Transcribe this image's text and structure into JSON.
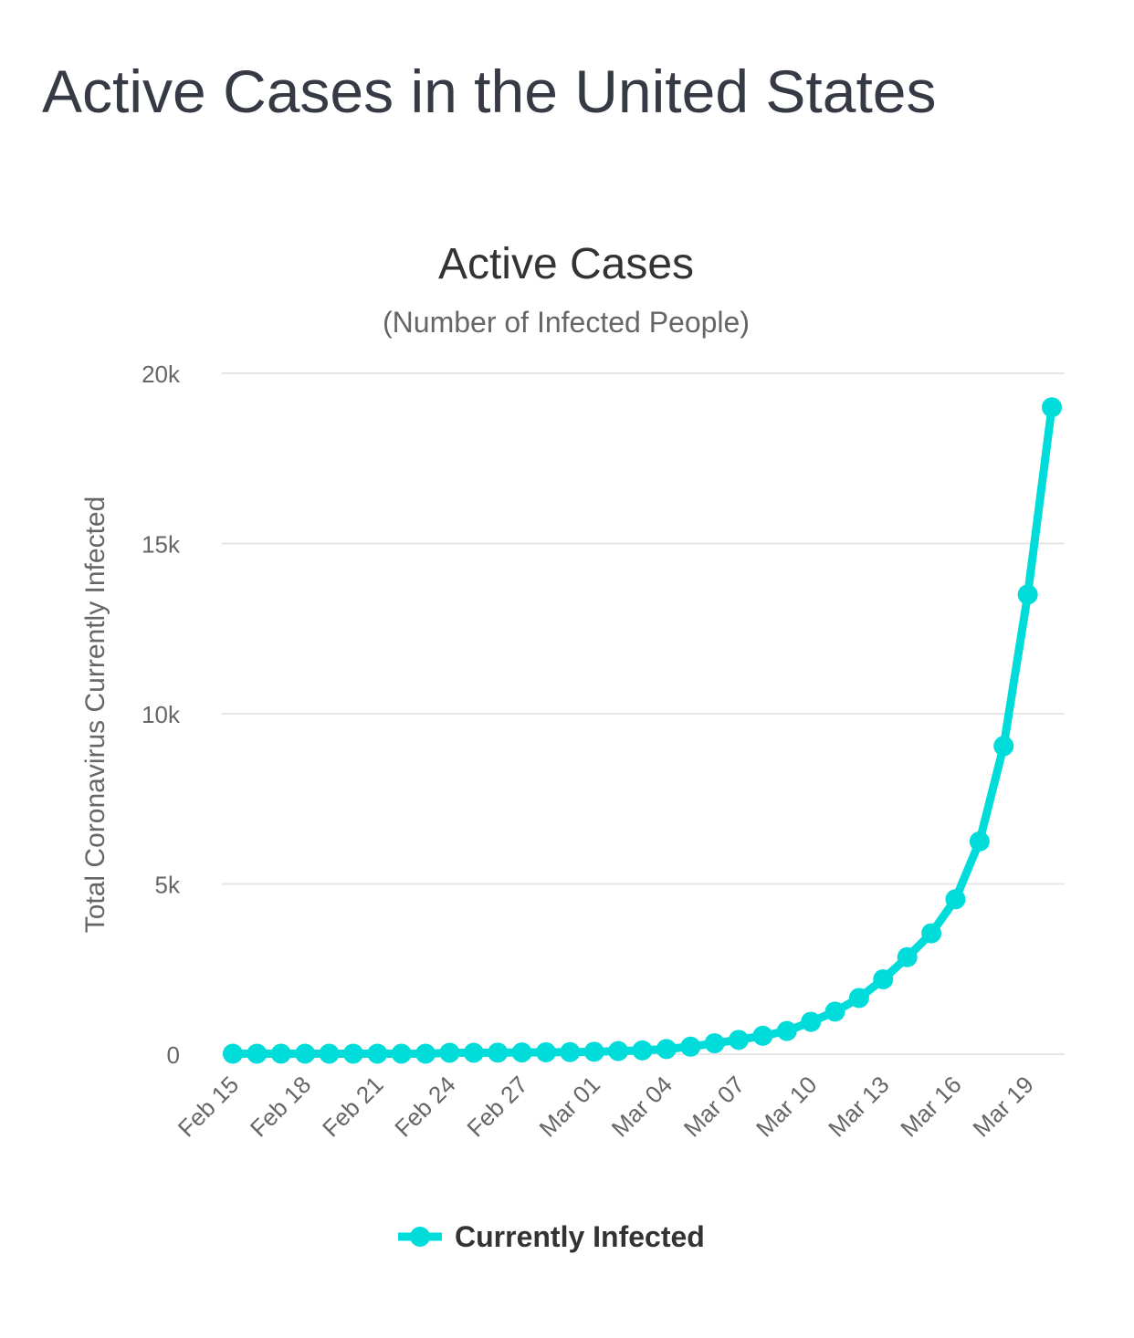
{
  "page": {
    "title": "Active Cases in the United States"
  },
  "chart_data": {
    "type": "line",
    "title": "Active Cases",
    "subtitle": "(Number of Infected People)",
    "ylabel": "Total Coronavirus Currently Infected",
    "xlabel": "",
    "ylim": [
      0,
      20000
    ],
    "yticks": [
      0,
      5000,
      10000,
      15000,
      20000
    ],
    "ytick_labels": [
      "0",
      "5k",
      "10k",
      "15k",
      "20k"
    ],
    "xtick_labels": [
      "Feb 15",
      "Feb 18",
      "Feb 21",
      "Feb 24",
      "Feb 27",
      "Mar 01",
      "Mar 04",
      "Mar 07",
      "Mar 10",
      "Mar 13",
      "Mar 16",
      "Mar 19"
    ],
    "x": [
      "Feb 15",
      "Feb 16",
      "Feb 17",
      "Feb 18",
      "Feb 19",
      "Feb 20",
      "Feb 21",
      "Feb 22",
      "Feb 23",
      "Feb 24",
      "Feb 25",
      "Feb 26",
      "Feb 27",
      "Feb 28",
      "Feb 29",
      "Mar 01",
      "Mar 02",
      "Mar 03",
      "Mar 04",
      "Mar 05",
      "Mar 06",
      "Mar 07",
      "Mar 08",
      "Mar 09",
      "Mar 10",
      "Mar 11",
      "Mar 12",
      "Mar 13",
      "Mar 14",
      "Mar 15",
      "Mar 16",
      "Mar 17",
      "Mar 18",
      "Mar 19",
      "Mar 20"
    ],
    "series": [
      {
        "name": "Currently Infected",
        "color": "#00dcd9",
        "values": [
          13,
          13,
          13,
          13,
          13,
          13,
          14,
          14,
          14,
          40,
          40,
          45,
          50,
          55,
          60,
          70,
          90,
          110,
          150,
          220,
          320,
          420,
          540,
          680,
          950,
          1250,
          1650,
          2200,
          2850,
          3550,
          4550,
          6250,
          9050,
          13500,
          19000
        ]
      }
    ],
    "grid": true,
    "legend": "bottom-center"
  }
}
